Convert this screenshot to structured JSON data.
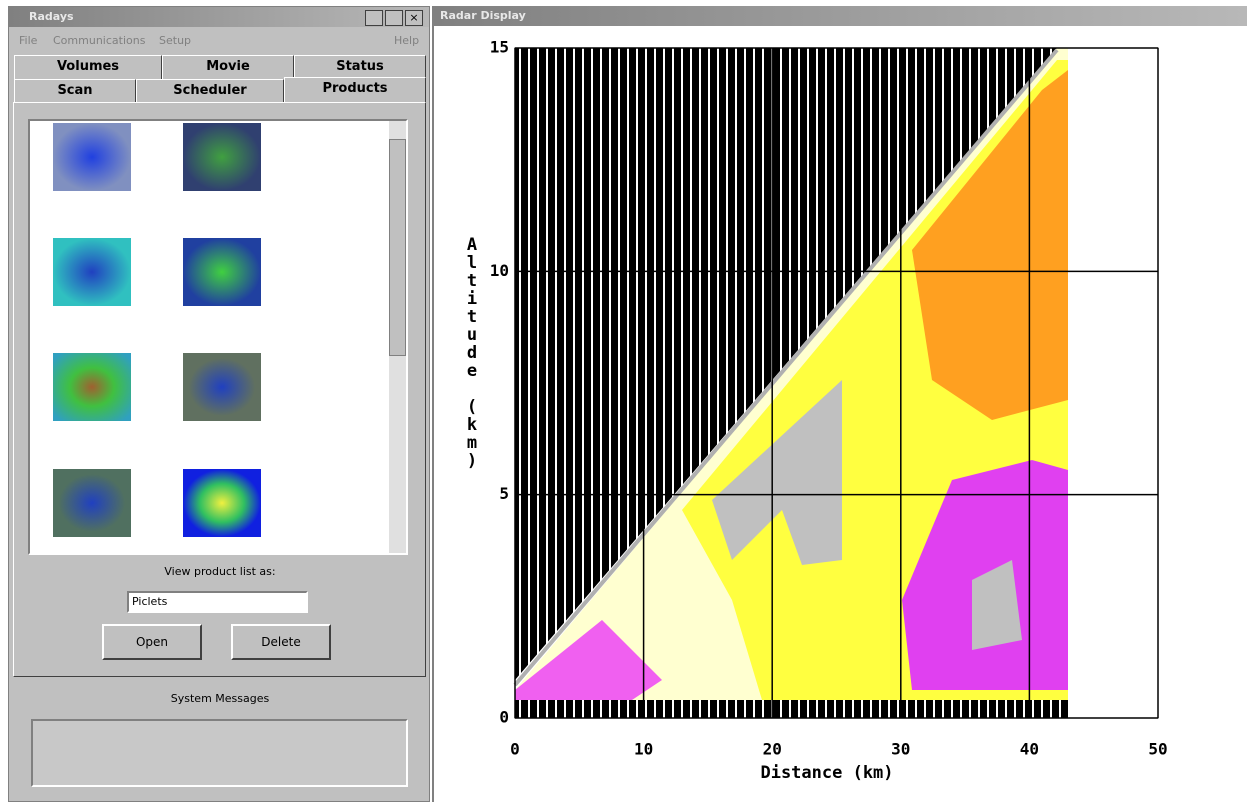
{
  "left_window": {
    "title": "Radays",
    "menu": [
      "File",
      "Communications",
      "Setup",
      "Help"
    ],
    "tabs_row1": [
      "Volumes",
      "Movie",
      "Status"
    ],
    "tabs_row2": [
      "Scan",
      "Scheduler",
      "Products"
    ],
    "view_label": "View product list as:",
    "dropdown": "Piclets",
    "buttons": [
      "Open",
      "Delete"
    ],
    "messages_title": "System Messages"
  },
  "right_window": {
    "title": "Radar Display"
  },
  "chart_data": {
    "type": "rhi",
    "xlabel": "Distance (km)",
    "ylabel": "Altitude (km)",
    "xlim": [
      0,
      50
    ],
    "ylim": [
      0,
      15
    ],
    "xticks": [
      0,
      10,
      20,
      30,
      40,
      50
    ],
    "yticks": [
      0,
      5,
      10,
      15
    ],
    "grid": true
  }
}
